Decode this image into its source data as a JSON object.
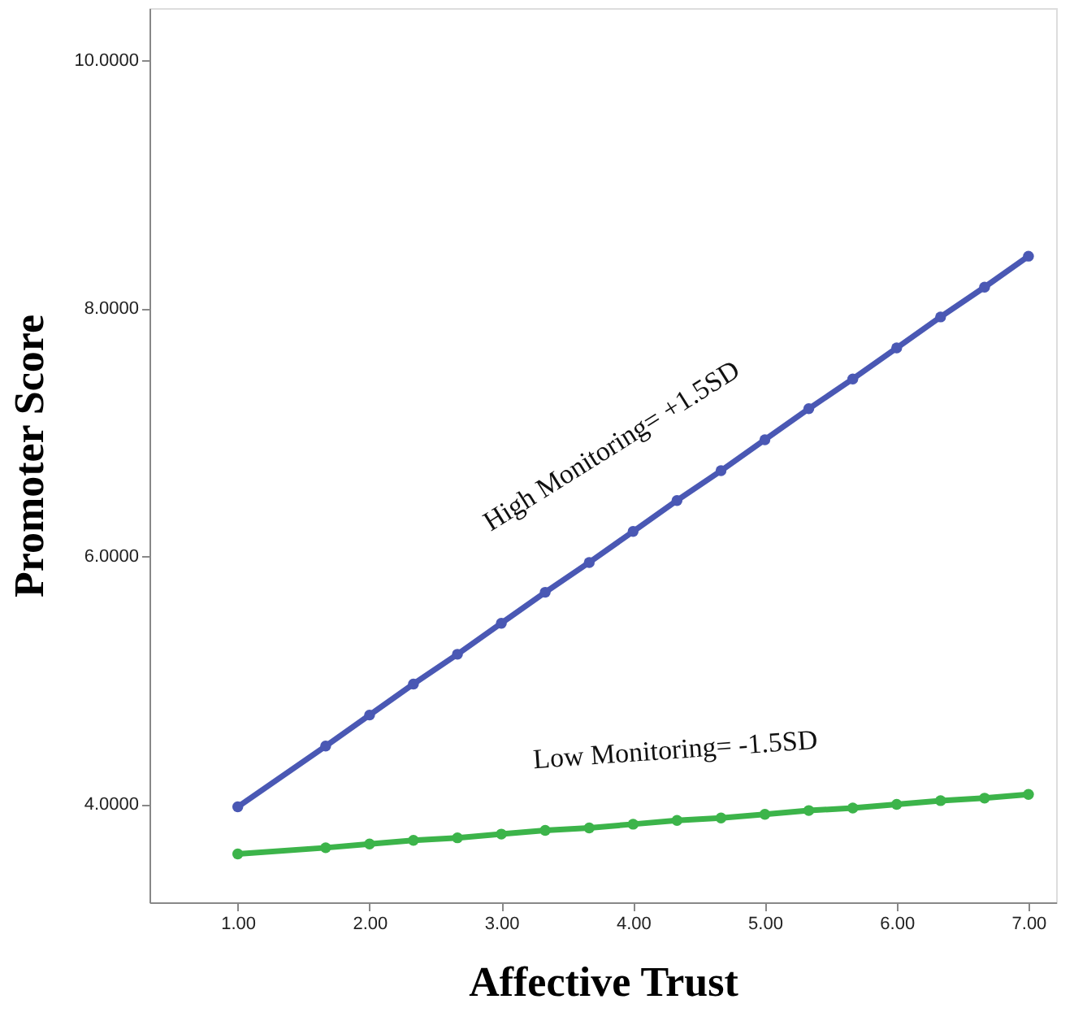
{
  "chart_data": {
    "type": "line",
    "xlabel": "Affective Trust",
    "ylabel": "Promoter Score",
    "x": [
      1,
      1.667,
      2,
      2.333,
      2.667,
      3,
      3.333,
      3.667,
      4,
      4.333,
      4.667,
      5,
      5.333,
      5.667,
      6,
      6.333,
      6.667,
      7
    ],
    "series": [
      {
        "color": "#4a58b4",
        "values": [
          3.98,
          4.47,
          4.72,
          4.97,
          5.21,
          5.46,
          5.71,
          5.95,
          6.2,
          6.45,
          6.69,
          6.94,
          7.19,
          7.43,
          7.68,
          7.93,
          8.17,
          8.42
        ]
      },
      {
        "color": "#3cb44a",
        "values": [
          3.6,
          3.65,
          3.68,
          3.71,
          3.73,
          3.76,
          3.79,
          3.81,
          3.84,
          3.87,
          3.89,
          3.92,
          3.95,
          3.97,
          4.0,
          4.03,
          4.05,
          4.08
        ]
      }
    ],
    "xlim": [
      0.33,
      7.21
    ],
    "ylim": [
      3.21,
      10.42
    ],
    "xticks": [
      {
        "value": 1,
        "label": "1.00"
      },
      {
        "value": 2,
        "label": "2.00"
      },
      {
        "value": 3,
        "label": "3.00"
      },
      {
        "value": 4,
        "label": "4.00"
      },
      {
        "value": 5,
        "label": "5.00"
      },
      {
        "value": 6,
        "label": "6.00"
      },
      {
        "value": 7,
        "label": "7.00"
      }
    ],
    "yticks": [
      {
        "value": 4,
        "label": "4.0000"
      },
      {
        "value": 6,
        "label": "6.0000"
      },
      {
        "value": 8,
        "label": "8.0000"
      },
      {
        "value": 10,
        "label": "10.0000"
      }
    ],
    "annotations": [
      "High Monitoring= +1.5SD",
      "Low Monitoring= -1.5SD"
    ],
    "marker": "circle",
    "line_style": "solid",
    "grid": false
  }
}
